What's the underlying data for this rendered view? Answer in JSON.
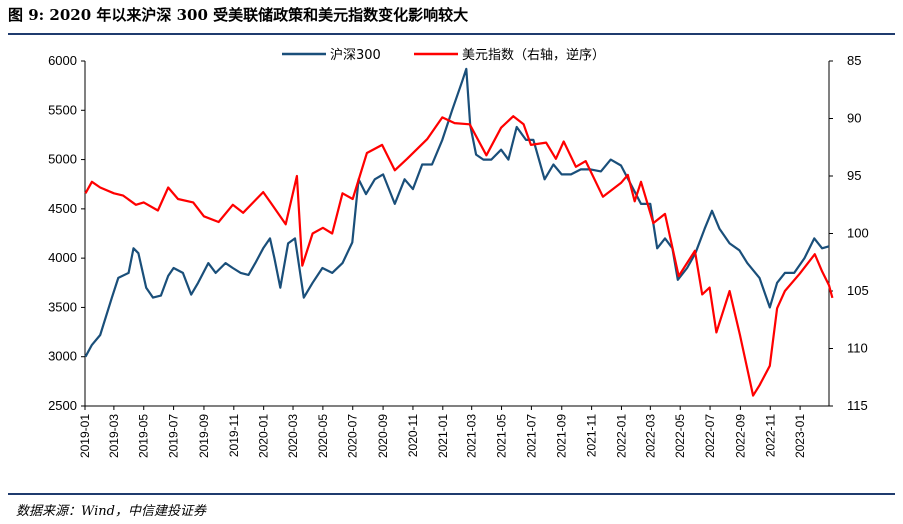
{
  "title": "图 9: 2020 年以来沪深 300 受美联储政策和美元指数变化影响较大",
  "source": "数据来源：Wind，中信建投证券",
  "chart_data": {
    "type": "line",
    "title": "图 9: 2020 年以来沪深 300 受美联储政策和美元指数变化影响较大",
    "legend_position": "top-center",
    "grid": false,
    "x_ticks": [
      "2019-01",
      "2019-03",
      "2019-05",
      "2019-07",
      "2019-09",
      "2019-11",
      "2020-01",
      "2020-03",
      "2020-05",
      "2020-07",
      "2020-09",
      "2020-11",
      "2021-01",
      "2021-03",
      "2021-05",
      "2021-07",
      "2021-09",
      "2021-11",
      "2022-01",
      "2022-03",
      "2022-05",
      "2022-07",
      "2022-09",
      "2022-11",
      "2023-01"
    ],
    "x_range": [
      "2019-01",
      "2023-03"
    ],
    "y_left": {
      "ticks": [
        "6000",
        "5500",
        "5000",
        "4500",
        "4000",
        "3500",
        "3000",
        "2500"
      ],
      "range": [
        2500,
        6000
      ]
    },
    "y_right": {
      "ticks": [
        "85",
        "90",
        "95",
        "100",
        "105",
        "110",
        "115"
      ],
      "range": [
        85,
        115
      ],
      "inverted": true
    },
    "series": [
      {
        "name": "沪深300",
        "axis": "left",
        "color": "#1a4f7a",
        "points": [
          [
            "2019-01-02",
            3000
          ],
          [
            "2019-01-15",
            3120
          ],
          [
            "2019-02-01",
            3220
          ],
          [
            "2019-02-25",
            3600
          ],
          [
            "2019-03-10",
            3800
          ],
          [
            "2019-03-31",
            3850
          ],
          [
            "2019-04-10",
            4100
          ],
          [
            "2019-04-20",
            4050
          ],
          [
            "2019-05-06",
            3700
          ],
          [
            "2019-05-20",
            3600
          ],
          [
            "2019-06-05",
            3620
          ],
          [
            "2019-06-20",
            3820
          ],
          [
            "2019-07-01",
            3900
          ],
          [
            "2019-07-20",
            3850
          ],
          [
            "2019-08-06",
            3630
          ],
          [
            "2019-08-20",
            3750
          ],
          [
            "2019-09-10",
            3950
          ],
          [
            "2019-09-25",
            3850
          ],
          [
            "2019-10-15",
            3950
          ],
          [
            "2019-10-30",
            3900
          ],
          [
            "2019-11-15",
            3850
          ],
          [
            "2019-12-01",
            3830
          ],
          [
            "2019-12-15",
            3950
          ],
          [
            "2019-12-31",
            4100
          ],
          [
            "2020-01-14",
            4200
          ],
          [
            "2020-01-23",
            4000
          ],
          [
            "2020-02-04",
            3700
          ],
          [
            "2020-02-20",
            4150
          ],
          [
            "2020-03-05",
            4200
          ],
          [
            "2020-03-23",
            3600
          ],
          [
            "2020-04-10",
            3750
          ],
          [
            "2020-04-30",
            3900
          ],
          [
            "2020-05-20",
            3850
          ],
          [
            "2020-06-10",
            3950
          ],
          [
            "2020-06-30",
            4160
          ],
          [
            "2020-07-13",
            4800
          ],
          [
            "2020-07-28",
            4650
          ],
          [
            "2020-08-15",
            4800
          ],
          [
            "2020-09-01",
            4850
          ],
          [
            "2020-09-25",
            4550
          ],
          [
            "2020-10-15",
            4800
          ],
          [
            "2020-11-01",
            4700
          ],
          [
            "2020-11-20",
            4950
          ],
          [
            "2020-12-10",
            4950
          ],
          [
            "2020-12-31",
            5200
          ],
          [
            "2021-01-20",
            5500
          ],
          [
            "2021-02-10",
            5800
          ],
          [
            "2021-02-18",
            5920
          ],
          [
            "2021-02-26",
            5350
          ],
          [
            "2021-03-10",
            5050
          ],
          [
            "2021-03-25",
            5000
          ],
          [
            "2021-04-10",
            5000
          ],
          [
            "2021-04-30",
            5100
          ],
          [
            "2021-05-15",
            5000
          ],
          [
            "2021-06-01",
            5330
          ],
          [
            "2021-06-20",
            5200
          ],
          [
            "2021-07-05",
            5200
          ],
          [
            "2021-07-28",
            4800
          ],
          [
            "2021-08-15",
            4950
          ],
          [
            "2021-09-01",
            4850
          ],
          [
            "2021-09-20",
            4850
          ],
          [
            "2021-10-10",
            4900
          ],
          [
            "2021-10-30",
            4900
          ],
          [
            "2021-11-20",
            4880
          ],
          [
            "2021-12-10",
            5000
          ],
          [
            "2021-12-31",
            4940
          ],
          [
            "2022-01-20",
            4750
          ],
          [
            "2022-02-10",
            4550
          ],
          [
            "2022-03-01",
            4550
          ],
          [
            "2022-03-15",
            4100
          ],
          [
            "2022-03-31",
            4200
          ],
          [
            "2022-04-15",
            4100
          ],
          [
            "2022-04-26",
            3780
          ],
          [
            "2022-05-15",
            3900
          ],
          [
            "2022-06-01",
            4050
          ],
          [
            "2022-06-20",
            4300
          ],
          [
            "2022-07-05",
            4480
          ],
          [
            "2022-07-20",
            4300
          ],
          [
            "2022-08-10",
            4150
          ],
          [
            "2022-08-30",
            4080
          ],
          [
            "2022-09-15",
            3950
          ],
          [
            "2022-10-10",
            3800
          ],
          [
            "2022-10-31",
            3500
          ],
          [
            "2022-11-15",
            3750
          ],
          [
            "2022-12-01",
            3850
          ],
          [
            "2022-12-20",
            3850
          ],
          [
            "2023-01-10",
            4000
          ],
          [
            "2023-01-30",
            4200
          ],
          [
            "2023-02-15",
            4100
          ],
          [
            "2023-03-01",
            4120
          ]
        ]
      },
      {
        "name": "美元指数（右轴，逆序）",
        "axis": "right",
        "color": "#ff0000",
        "points": [
          [
            "2019-01-02",
            96.5
          ],
          [
            "2019-01-15",
            95.5
          ],
          [
            "2019-02-01",
            96
          ],
          [
            "2019-03-01",
            96.5
          ],
          [
            "2019-03-20",
            96.7
          ],
          [
            "2019-04-15",
            97.5
          ],
          [
            "2019-05-01",
            97.3
          ],
          [
            "2019-05-30",
            98
          ],
          [
            "2019-06-20",
            96
          ],
          [
            "2019-07-10",
            97
          ],
          [
            "2019-08-10",
            97.3
          ],
          [
            "2019-09-01",
            98.5
          ],
          [
            "2019-10-01",
            99
          ],
          [
            "2019-10-30",
            97.5
          ],
          [
            "2019-11-20",
            98.2
          ],
          [
            "2019-12-31",
            96.4
          ],
          [
            "2020-01-15",
            97.3
          ],
          [
            "2020-02-15",
            99.2
          ],
          [
            "2020-03-09",
            95
          ],
          [
            "2020-03-20",
            102.8
          ],
          [
            "2020-04-10",
            100
          ],
          [
            "2020-05-01",
            99.5
          ],
          [
            "2020-05-20",
            100
          ],
          [
            "2020-06-10",
            96.5
          ],
          [
            "2020-07-01",
            97
          ],
          [
            "2020-07-30",
            93
          ],
          [
            "2020-08-30",
            92.3
          ],
          [
            "2020-09-25",
            94.5
          ],
          [
            "2020-10-20",
            93.5
          ],
          [
            "2020-11-30",
            91.8
          ],
          [
            "2020-12-31",
            89.9
          ],
          [
            "2021-01-25",
            90.4
          ],
          [
            "2021-02-25",
            90.5
          ],
          [
            "2021-03-31",
            93.2
          ],
          [
            "2021-04-30",
            90.8
          ],
          [
            "2021-05-25",
            89.8
          ],
          [
            "2021-06-15",
            90.5
          ],
          [
            "2021-06-30",
            92.3
          ],
          [
            "2021-07-31",
            92.1
          ],
          [
            "2021-08-20",
            93.5
          ],
          [
            "2021-09-05",
            92
          ],
          [
            "2021-09-30",
            94.2
          ],
          [
            "2021-10-20",
            93.7
          ],
          [
            "2021-11-24",
            96.8
          ],
          [
            "2021-12-31",
            95.6
          ],
          [
            "2022-01-14",
            94.9
          ],
          [
            "2022-01-28",
            97.2
          ],
          [
            "2022-02-10",
            95.5
          ],
          [
            "2022-03-07",
            99.1
          ],
          [
            "2022-03-31",
            98.3
          ],
          [
            "2022-04-28",
            103.7
          ],
          [
            "2022-05-31",
            101.5
          ],
          [
            "2022-06-15",
            105.3
          ],
          [
            "2022-06-30",
            104.7
          ],
          [
            "2022-07-14",
            108.6
          ],
          [
            "2022-08-10",
            105
          ],
          [
            "2022-08-31",
            108.8
          ],
          [
            "2022-09-27",
            114.1
          ],
          [
            "2022-10-10",
            113.2
          ],
          [
            "2022-10-31",
            111.5
          ],
          [
            "2022-11-15",
            106.5
          ],
          [
            "2022-12-01",
            105
          ],
          [
            "2022-12-31",
            103.5
          ],
          [
            "2023-01-31",
            101.8
          ],
          [
            "2023-02-15",
            103.3
          ],
          [
            "2023-03-01",
            104.5
          ],
          [
            "2023-03-08",
            105.6
          ]
        ]
      }
    ]
  }
}
